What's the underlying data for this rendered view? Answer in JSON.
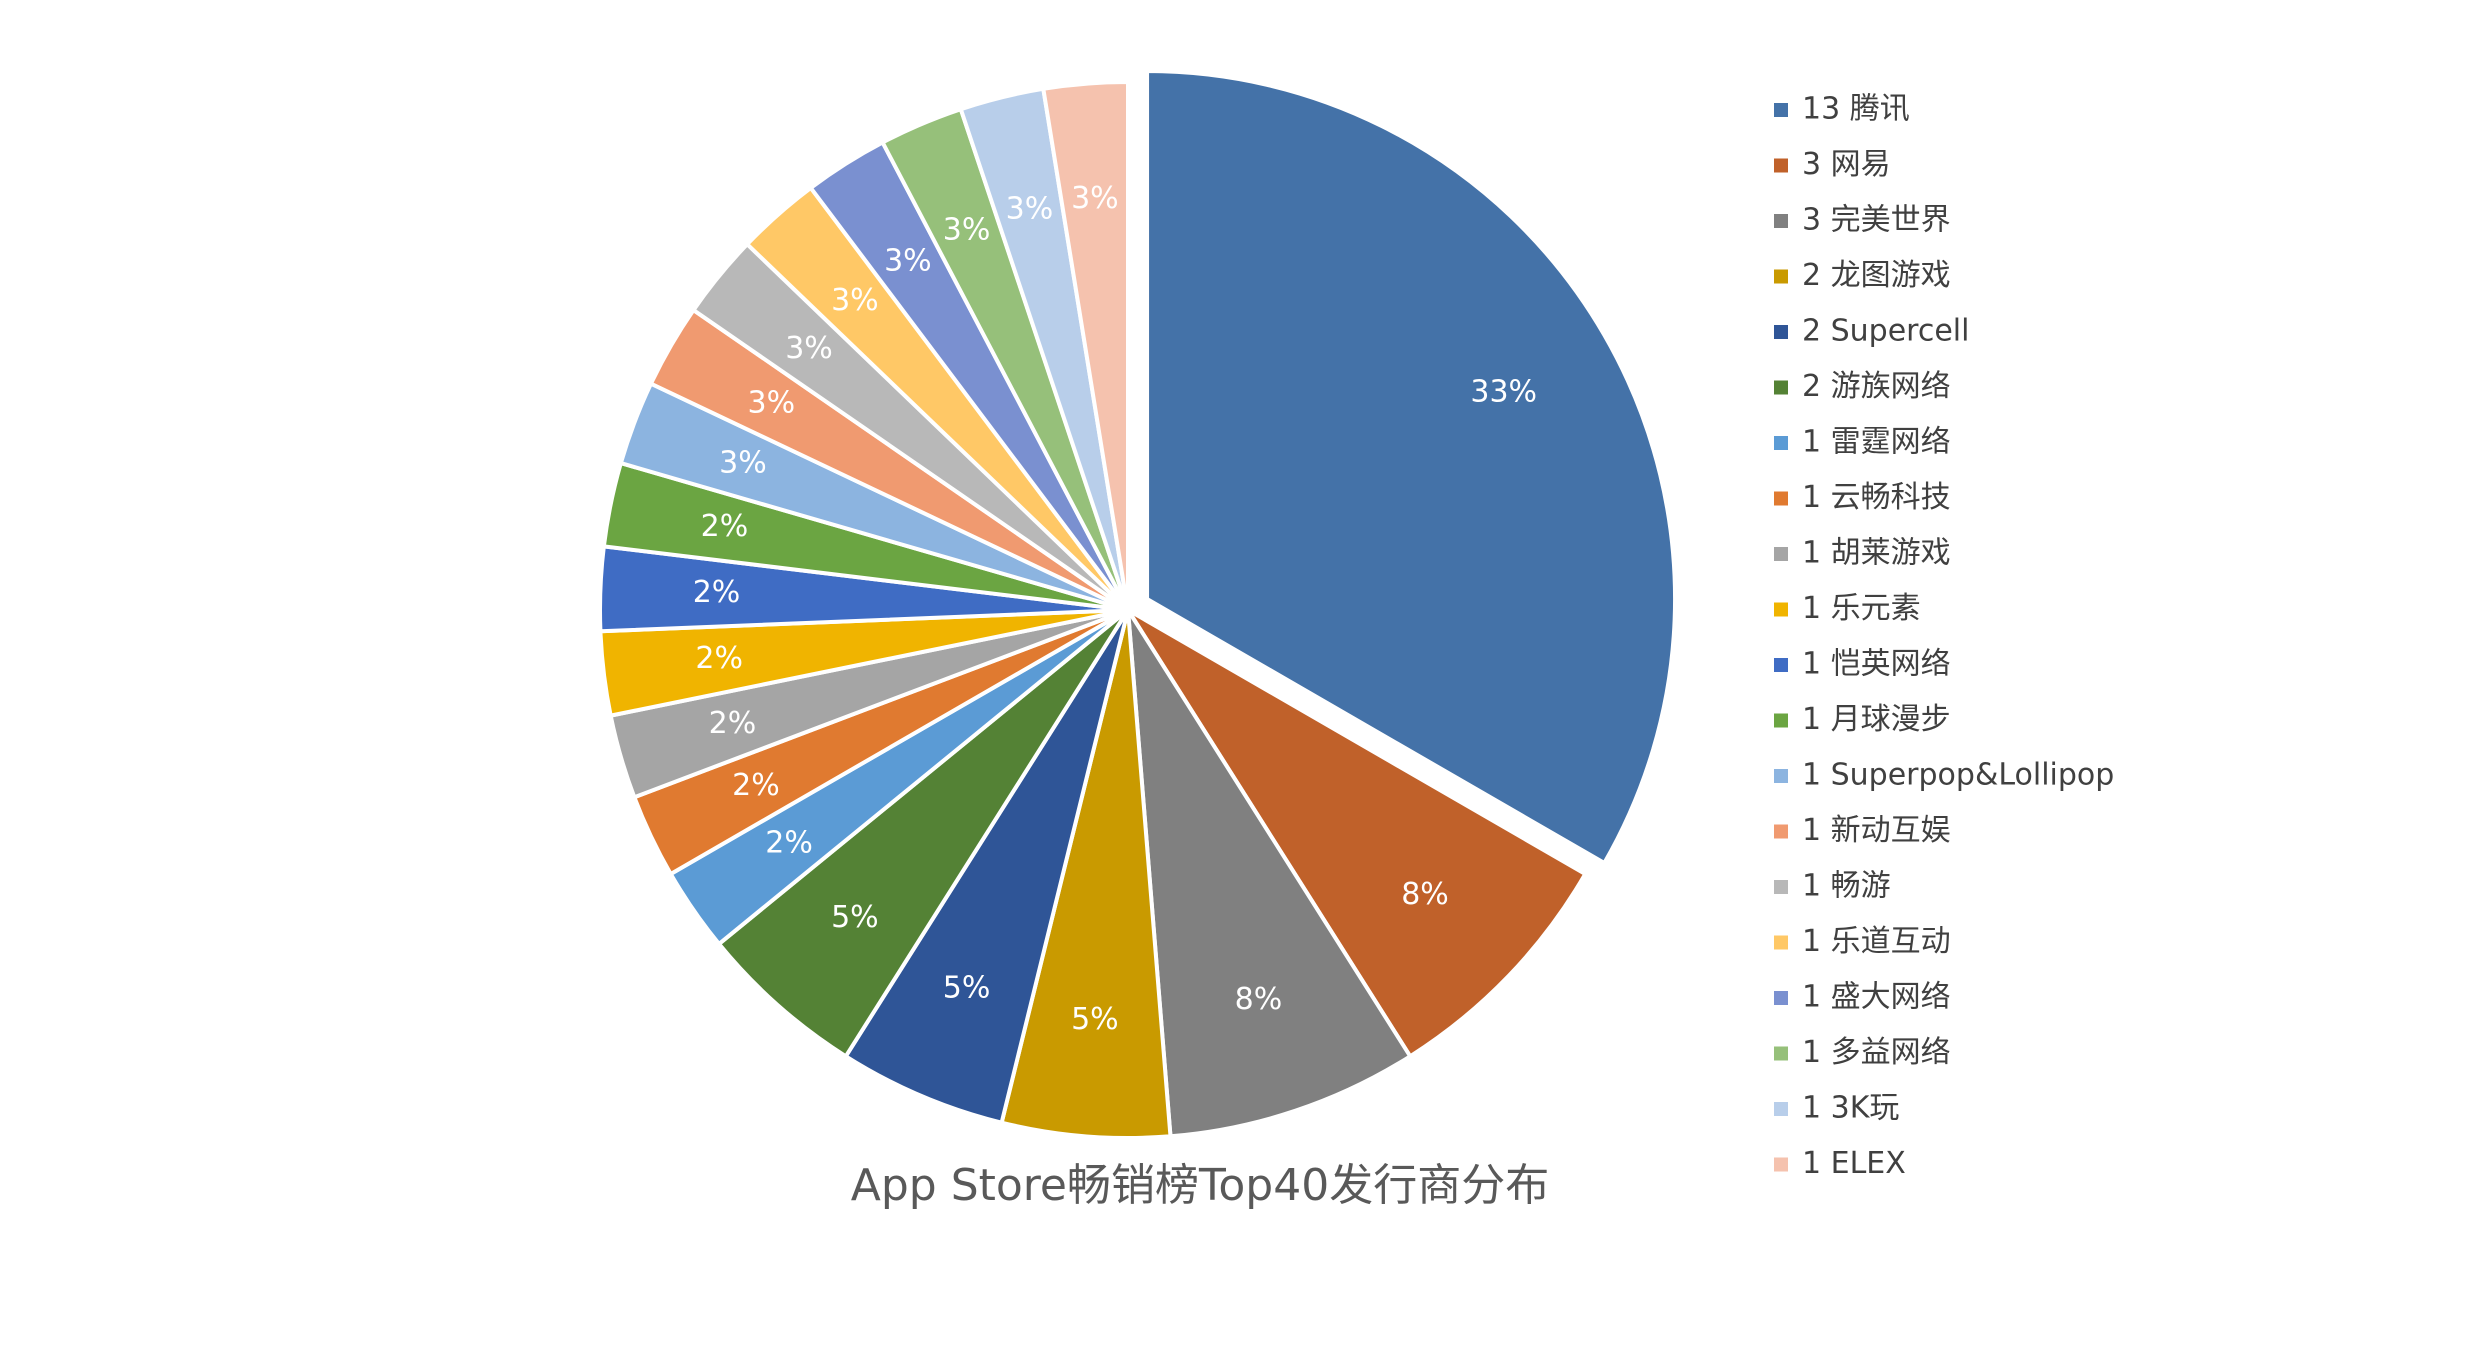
{
  "chart_data": {
    "type": "pie",
    "title": "App Store畅销榜Top40发行商分布",
    "legend_position": "right",
    "total": 40,
    "slices": [
      {
        "label": "13 腾讯",
        "value": 13,
        "percent_label": "33%",
        "color": "#4472A8"
      },
      {
        "label": "3 网易",
        "value": 3,
        "percent_label": "8%",
        "color": "#C0612A"
      },
      {
        "label": "3 完美世界",
        "value": 3,
        "percent_label": "8%",
        "color": "#808080"
      },
      {
        "label": "2 龙图游戏",
        "value": 2,
        "percent_label": "5%",
        "color": "#C99A00"
      },
      {
        "label": "2 Supercell",
        "value": 2,
        "percent_label": "5%",
        "color": "#2F5597"
      },
      {
        "label": "2 游族网络",
        "value": 2,
        "percent_label": "5%",
        "color": "#548235"
      },
      {
        "label": "1 雷霆网络",
        "value": 1,
        "percent_label": "2%",
        "color": "#5B9BD5"
      },
      {
        "label": "1 云畅科技",
        "value": 1,
        "percent_label": "2%",
        "color": "#E07A30"
      },
      {
        "label": "1 胡莱游戏",
        "value": 1,
        "percent_label": "2%",
        "color": "#A5A5A5"
      },
      {
        "label": "1 乐元素",
        "value": 1,
        "percent_label": "2%",
        "color": "#F0B400"
      },
      {
        "label": "1 恺英网络",
        "value": 1,
        "percent_label": "2%",
        "color": "#3F6CC4"
      },
      {
        "label": "1 月球漫步",
        "value": 1,
        "percent_label": "2%",
        "color": "#6BA542"
      },
      {
        "label": "1 Superpop&Lollipop",
        "value": 1,
        "percent_label": "3%",
        "color": "#8CB4E0"
      },
      {
        "label": "1 新动互娱",
        "value": 1,
        "percent_label": "3%",
        "color": "#F09A70"
      },
      {
        "label": "1 畅游",
        "value": 1,
        "percent_label": "3%",
        "color": "#B8B8B8"
      },
      {
        "label": "1 乐道互动",
        "value": 1,
        "percent_label": "3%",
        "color": "#FFC866"
      },
      {
        "label": "1 盛大网络",
        "value": 1,
        "percent_label": "3%",
        "color": "#7A90D0"
      },
      {
        "label": "1 多益网络",
        "value": 1,
        "percent_label": "3%",
        "color": "#96C07A"
      },
      {
        "label": "1 3K玩",
        "value": 1,
        "percent_label": "3%",
        "color": "#B8CEEA"
      },
      {
        "label": "1 ELEX",
        "value": 1,
        "percent_label": "3%",
        "color": "#F5C2AE"
      }
    ]
  }
}
